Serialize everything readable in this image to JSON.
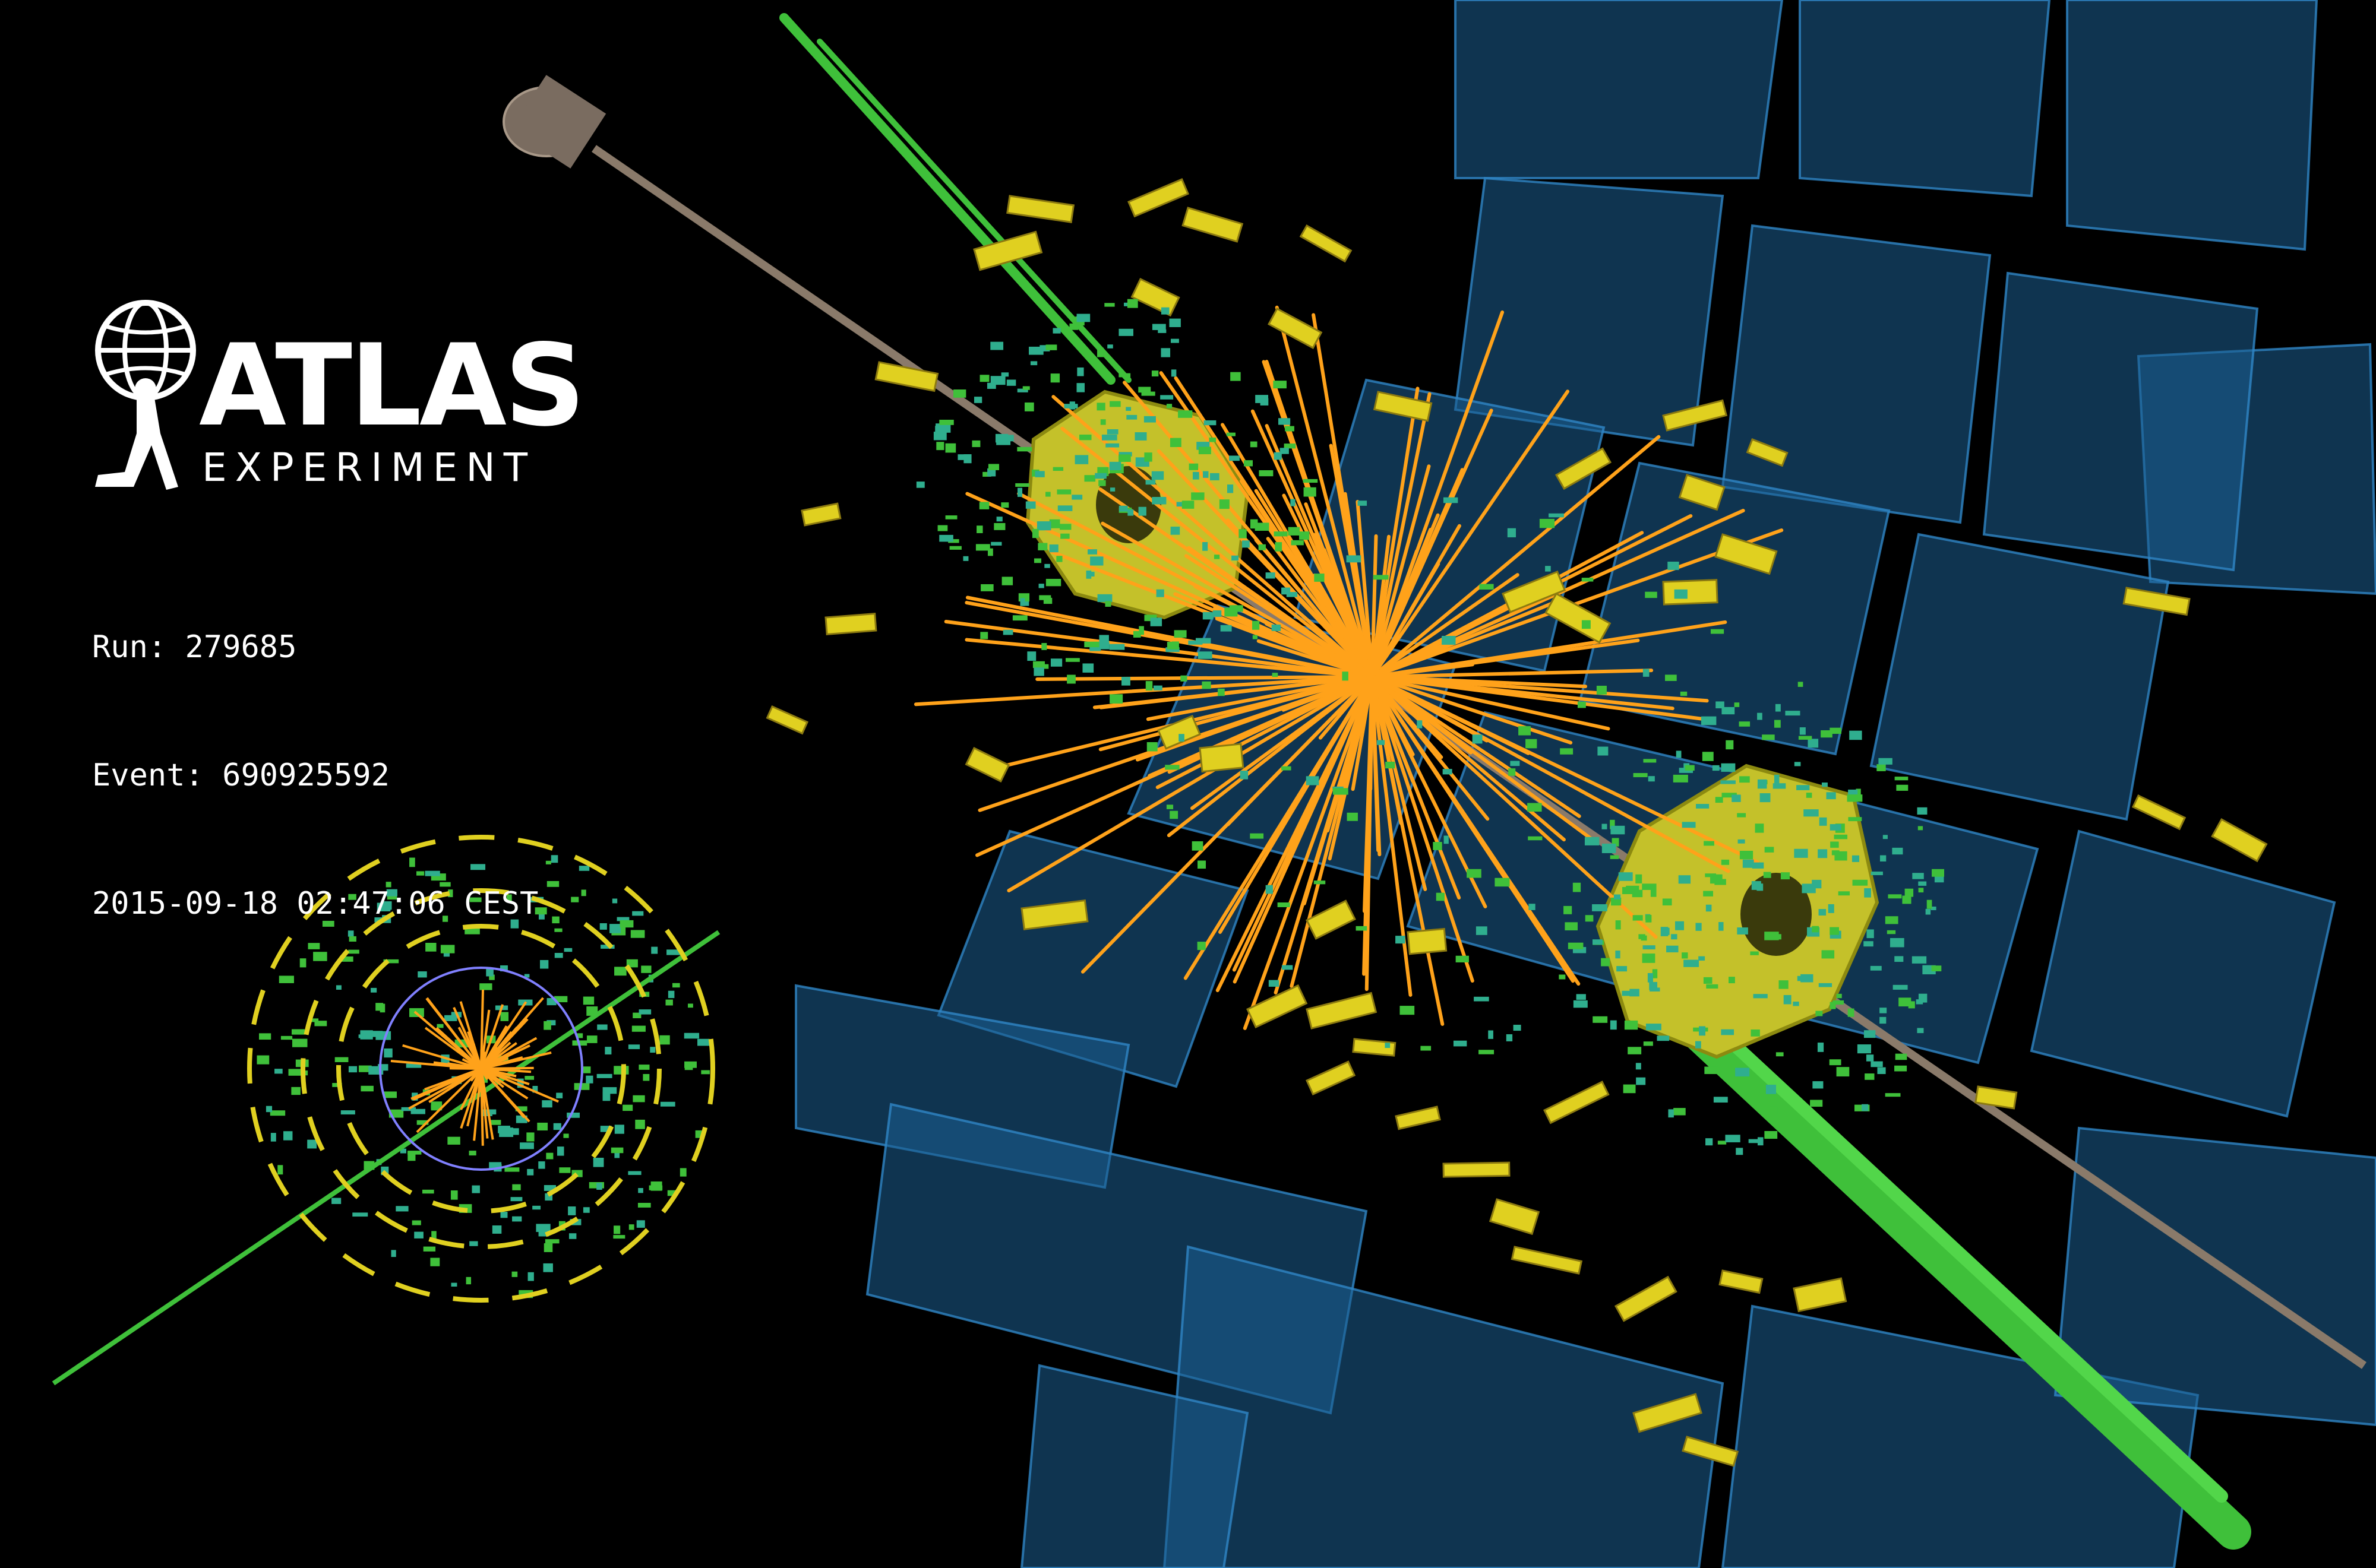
{
  "logo": {
    "word": "ATLAS",
    "sub": "EXPERIMENT",
    "icon": "atlas-globe-figure-icon"
  },
  "event_info": {
    "run": "Run: 279685",
    "event": "Event: 690925592",
    "datetime": "2015-09-18 02:47:06 CEST"
  },
  "colors": {
    "background": "#000000",
    "muon_chambers": "#1f6fa8",
    "calorimeter_cells": "#e0d020",
    "end_caps": "#c8c42a",
    "tracks": "#ffa21a",
    "jets": "#3fc03a",
    "beam_pipe": "#8a7a6a",
    "text": "#ffffff"
  }
}
